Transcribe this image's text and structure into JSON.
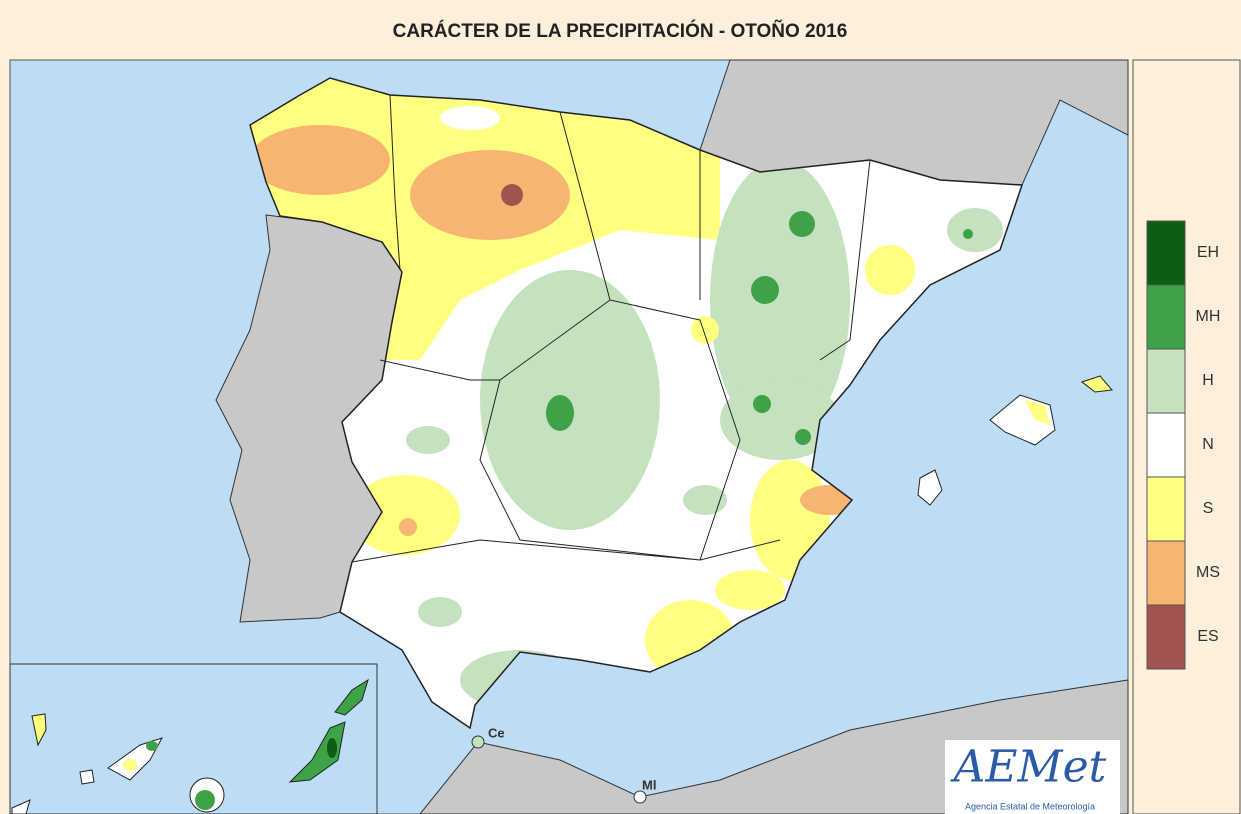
{
  "title": "CARÁCTER DE LA PRECIPITACIÓN - OTOÑO 2016",
  "legend": {
    "items": [
      {
        "label": "EH",
        "color": "#0b5e12"
      },
      {
        "label": "MH",
        "color": "#3ea348"
      },
      {
        "label": "H",
        "color": "#c5e1bf"
      },
      {
        "label": "N",
        "color": "#ffffff"
      },
      {
        "label": "S",
        "color": "#ffff80"
      },
      {
        "label": "MS",
        "color": "#f7b573"
      },
      {
        "label": "ES",
        "color": "#a35252"
      }
    ]
  },
  "map_labels": {
    "ceuta": "Ce",
    "melilla": "Ml"
  },
  "logo": {
    "text": "AEMet",
    "subtitle": "Agencia Estatal de Meteorología"
  }
}
